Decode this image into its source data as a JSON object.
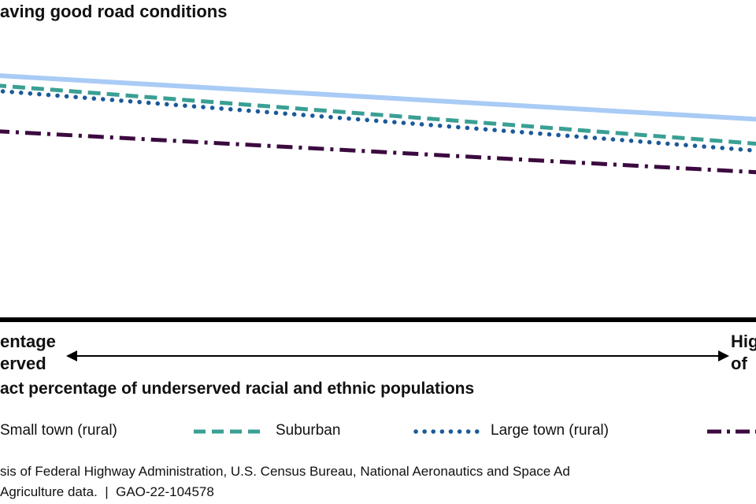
{
  "chart_data": {
    "type": "line",
    "title": "aving good road conditions",
    "xlabel": "act percentage of underserved racial and ethnic populations",
    "ylabel": "",
    "x_axis_end_labels": {
      "low": [
        "entage",
        "erved"
      ],
      "high": [
        "Hig",
        "of"
      ]
    },
    "x": [
      0,
      1
    ],
    "series": [
      {
        "name": "",
        "values": [
          0.895,
          0.73
        ],
        "color": "#a9cbf5",
        "style": "solid"
      },
      {
        "name": "Suburban",
        "values": [
          0.858,
          0.638
        ],
        "color": "#3a9f94",
        "style": "dashed"
      },
      {
        "name": "Large town (rural)",
        "values": [
          0.838,
          0.612
        ],
        "color": "#1c5a99",
        "style": "dotted"
      },
      {
        "name": "",
        "values": [
          0.687,
          0.532
        ],
        "color": "#3b0a3f",
        "style": "dashdot"
      }
    ],
    "legend": {
      "position": "bottom",
      "items": [
        {
          "label": "Small town (rural)",
          "color": "#a9cbf5",
          "style": "solid"
        },
        {
          "label": "Suburban",
          "color": "#3a9f94",
          "style": "dashed"
        },
        {
          "label": "Large town (rural)",
          "color": "#1c5a99",
          "style": "dotted"
        },
        {
          "label": "",
          "color": "#3b0a3f",
          "style": "dashdot"
        }
      ]
    },
    "grid": false
  },
  "source_note": {
    "line1": "sis of Federal Highway Administration, U.S. Census Bureau, National Aeronautics and Space Ad",
    "line2": "Agriculture data.  |  GAO-22-104578"
  },
  "colors": {
    "axis": "#000000",
    "text": "#111111"
  }
}
